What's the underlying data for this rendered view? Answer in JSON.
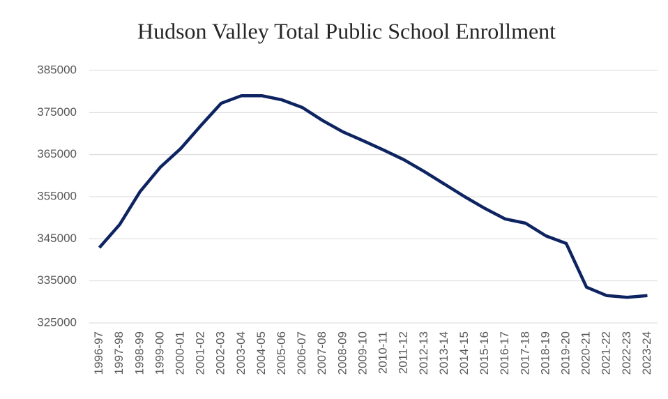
{
  "chart_data": {
    "type": "line",
    "title": "Hudson Valley Total Public School Enrollment",
    "categories": [
      "1996-97",
      "1997-98",
      "1998-99",
      "1999-00",
      "2000-01",
      "2001-02",
      "2002-03",
      "2003-04",
      "2004-05",
      "2005-06",
      "2006-07",
      "2007-08",
      "2008-09",
      "2009-10",
      "2010-11",
      "2011-12",
      "2012-13",
      "2013-14",
      "2014-15",
      "2015-16",
      "2016-17",
      "2017-18",
      "2018-19",
      "2019-20",
      "2020-21",
      "2021-22",
      "2022-23",
      "2023-24"
    ],
    "series": [
      {
        "name": "Enrollment",
        "color": "#0e2461",
        "values": [
          342900,
          348400,
          356200,
          362000,
          366400,
          371900,
          377200,
          379000,
          379000,
          378000,
          376200,
          373100,
          370400,
          368300,
          366100,
          363800,
          361000,
          358000,
          355000,
          352200,
          349700,
          348700,
          345700,
          343900,
          333500,
          331500,
          331100,
          331500
        ]
      }
    ],
    "ylim": [
      325000,
      385000
    ],
    "yticks": [
      325000,
      335000,
      345000,
      355000,
      365000,
      375000,
      385000
    ],
    "grid": true
  }
}
